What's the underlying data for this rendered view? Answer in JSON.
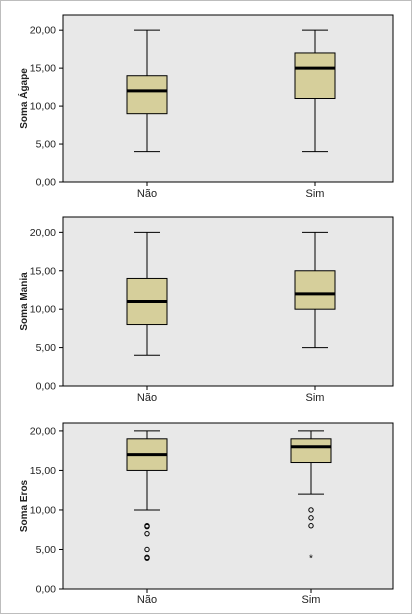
{
  "chart_data": [
    {
      "type": "boxplot",
      "ylabel": "Soma Ágape",
      "categories": [
        "Não",
        "Sim"
      ],
      "ylim": [
        0,
        22
      ],
      "yticks": [
        0,
        5,
        10,
        15,
        20
      ],
      "ytick_labels": [
        "0,00",
        "5,00",
        "10,00",
        "15,00",
        "20,00"
      ],
      "grid": false,
      "box_color": "#d6cf9b",
      "series": [
        {
          "category": "Não",
          "min": 4,
          "q1": 9,
          "median": 12,
          "q3": 14,
          "max": 20,
          "outliers": [],
          "extremes": []
        },
        {
          "category": "Sim",
          "min": 4,
          "q1": 11,
          "median": 15,
          "q3": 17,
          "max": 20,
          "outliers": [],
          "extremes": []
        }
      ]
    },
    {
      "type": "boxplot",
      "ylabel": "Soma Mania",
      "categories": [
        "Não",
        "Sim"
      ],
      "ylim": [
        0,
        22
      ],
      "yticks": [
        0,
        5,
        10,
        15,
        20
      ],
      "ytick_labels": [
        "0,00",
        "5,00",
        "10,00",
        "15,00",
        "20,00"
      ],
      "grid": false,
      "box_color": "#d6cf9b",
      "series": [
        {
          "category": "Não",
          "min": 4,
          "q1": 8,
          "median": 11,
          "q3": 14,
          "max": 20,
          "outliers": [],
          "extremes": []
        },
        {
          "category": "Sim",
          "min": 5,
          "q1": 10,
          "median": 12,
          "q3": 15,
          "max": 20,
          "outliers": [],
          "extremes": []
        }
      ]
    },
    {
      "type": "boxplot",
      "ylabel": "Soma Eros",
      "categories": [
        "Não",
        "Sim"
      ],
      "ylim": [
        0,
        21
      ],
      "yticks": [
        0,
        5,
        10,
        15,
        20
      ],
      "ytick_labels": [
        "0,00",
        "5,00",
        "10,00",
        "15,00",
        "20,00"
      ],
      "grid": false,
      "box_color": "#d6cf9b",
      "series": [
        {
          "category": "Não",
          "min": 10,
          "q1": 15,
          "median": 17,
          "q3": 19,
          "max": 20,
          "outliers": [
            8,
            7.9,
            7,
            5,
            4,
            3.9
          ],
          "extremes": []
        },
        {
          "category": "Sim",
          "min": 12,
          "q1": 16,
          "median": 18,
          "q3": 19,
          "max": 20,
          "outliers": [
            10,
            9,
            8
          ],
          "extremes": [
            4
          ]
        }
      ]
    }
  ]
}
